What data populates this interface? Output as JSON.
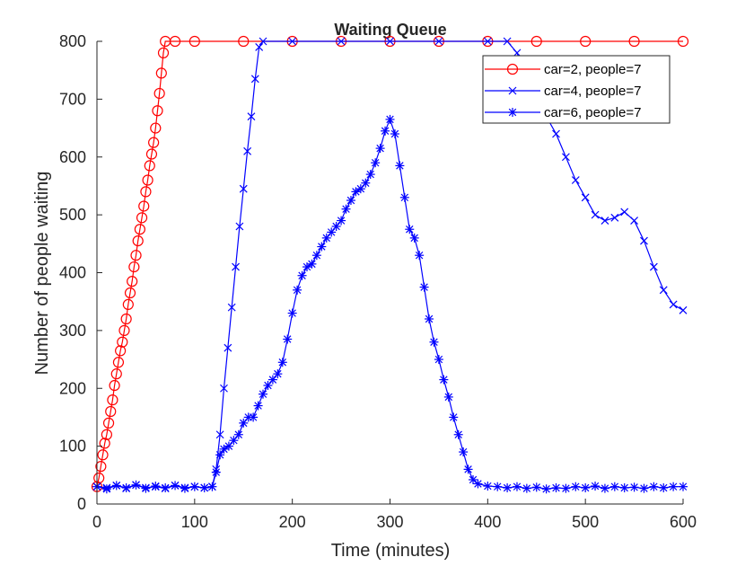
{
  "chart_data": {
    "type": "line",
    "title": "Waiting Queue",
    "xlabel": "Time (minutes)",
    "ylabel": "Number of people waiting",
    "xlim": [
      0,
      600
    ],
    "ylim": [
      0,
      800
    ],
    "xticks": [
      0,
      100,
      200,
      300,
      400,
      500,
      600
    ],
    "yticks": [
      0,
      100,
      200,
      300,
      400,
      500,
      600,
      700,
      800
    ],
    "xtick_labels": [
      "0",
      "100",
      "200",
      "300",
      "400",
      "500",
      "600"
    ],
    "ytick_labels": [
      "0",
      "100",
      "200",
      "300",
      "400",
      "500",
      "600",
      "700",
      "800"
    ],
    "grid": false,
    "legend_position": "top-right",
    "series": [
      {
        "name": "car=2, people=7",
        "color": "#ff0000",
        "marker": "circle",
        "points": [
          [
            0,
            30
          ],
          [
            2,
            45
          ],
          [
            4,
            65
          ],
          [
            6,
            85
          ],
          [
            8,
            105
          ],
          [
            10,
            120
          ],
          [
            12,
            140
          ],
          [
            14,
            160
          ],
          [
            16,
            180
          ],
          [
            18,
            205
          ],
          [
            20,
            225
          ],
          [
            22,
            245
          ],
          [
            24,
            265
          ],
          [
            26,
            280
          ],
          [
            28,
            300
          ],
          [
            30,
            320
          ],
          [
            32,
            345
          ],
          [
            34,
            365
          ],
          [
            36,
            385
          ],
          [
            38,
            410
          ],
          [
            40,
            430
          ],
          [
            42,
            455
          ],
          [
            44,
            475
          ],
          [
            46,
            495
          ],
          [
            48,
            515
          ],
          [
            50,
            540
          ],
          [
            52,
            560
          ],
          [
            54,
            585
          ],
          [
            56,
            605
          ],
          [
            58,
            625
          ],
          [
            60,
            650
          ],
          [
            62,
            680
          ],
          [
            64,
            710
          ],
          [
            66,
            745
          ],
          [
            68,
            780
          ],
          [
            70,
            800
          ],
          [
            80,
            800
          ],
          [
            100,
            800
          ],
          [
            150,
            800
          ],
          [
            200,
            800
          ],
          [
            250,
            800
          ],
          [
            300,
            800
          ],
          [
            350,
            800
          ],
          [
            400,
            800
          ],
          [
            450,
            800
          ],
          [
            500,
            800
          ],
          [
            550,
            800
          ],
          [
            600,
            800
          ]
        ]
      },
      {
        "name": "car=4, people=7",
        "color": "#0000ff",
        "marker": "x",
        "points": [
          [
            0,
            30
          ],
          [
            10,
            28
          ],
          [
            20,
            32
          ],
          [
            30,
            27
          ],
          [
            40,
            33
          ],
          [
            50,
            28
          ],
          [
            60,
            30
          ],
          [
            70,
            27
          ],
          [
            80,
            32
          ],
          [
            90,
            28
          ],
          [
            100,
            30
          ],
          [
            110,
            28
          ],
          [
            118,
            30
          ],
          [
            122,
            60
          ],
          [
            126,
            120
          ],
          [
            130,
            200
          ],
          [
            134,
            270
          ],
          [
            138,
            340
          ],
          [
            142,
            410
          ],
          [
            146,
            480
          ],
          [
            150,
            545
          ],
          [
            154,
            610
          ],
          [
            158,
            670
          ],
          [
            162,
            735
          ],
          [
            166,
            790
          ],
          [
            170,
            800
          ],
          [
            200,
            800
          ],
          [
            250,
            800
          ],
          [
            300,
            800
          ],
          [
            350,
            800
          ],
          [
            400,
            800
          ],
          [
            420,
            800
          ],
          [
            430,
            780
          ],
          [
            440,
            740
          ],
          [
            450,
            700
          ],
          [
            460,
            670
          ],
          [
            470,
            640
          ],
          [
            480,
            600
          ],
          [
            490,
            560
          ],
          [
            500,
            530
          ],
          [
            510,
            500
          ],
          [
            520,
            490
          ],
          [
            530,
            495
          ],
          [
            540,
            505
          ],
          [
            550,
            490
          ],
          [
            560,
            455
          ],
          [
            570,
            410
          ],
          [
            580,
            370
          ],
          [
            590,
            345
          ],
          [
            600,
            335
          ]
        ]
      },
      {
        "name": "car=6, people=7",
        "color": "#0000ff",
        "marker": "star",
        "points": [
          [
            0,
            30
          ],
          [
            10,
            26
          ],
          [
            20,
            32
          ],
          [
            30,
            28
          ],
          [
            40,
            33
          ],
          [
            50,
            27
          ],
          [
            60,
            31
          ],
          [
            70,
            28
          ],
          [
            80,
            32
          ],
          [
            90,
            27
          ],
          [
            100,
            30
          ],
          [
            110,
            28
          ],
          [
            118,
            30
          ],
          [
            122,
            55
          ],
          [
            126,
            85
          ],
          [
            130,
            95
          ],
          [
            135,
            100
          ],
          [
            140,
            110
          ],
          [
            145,
            120
          ],
          [
            150,
            140
          ],
          [
            155,
            150
          ],
          [
            160,
            150
          ],
          [
            165,
            170
          ],
          [
            170,
            190
          ],
          [
            175,
            205
          ],
          [
            180,
            215
          ],
          [
            185,
            225
          ],
          [
            190,
            245
          ],
          [
            195,
            285
          ],
          [
            200,
            330
          ],
          [
            205,
            370
          ],
          [
            210,
            395
          ],
          [
            215,
            410
          ],
          [
            220,
            415
          ],
          [
            225,
            430
          ],
          [
            230,
            445
          ],
          [
            235,
            460
          ],
          [
            240,
            470
          ],
          [
            245,
            480
          ],
          [
            250,
            490
          ],
          [
            255,
            510
          ],
          [
            260,
            525
          ],
          [
            265,
            540
          ],
          [
            270,
            545
          ],
          [
            275,
            555
          ],
          [
            280,
            570
          ],
          [
            285,
            590
          ],
          [
            290,
            615
          ],
          [
            295,
            645
          ],
          [
            300,
            665
          ],
          [
            305,
            640
          ],
          [
            310,
            585
          ],
          [
            315,
            530
          ],
          [
            320,
            475
          ],
          [
            325,
            460
          ],
          [
            330,
            430
          ],
          [
            335,
            375
          ],
          [
            340,
            320
          ],
          [
            345,
            280
          ],
          [
            350,
            250
          ],
          [
            355,
            215
          ],
          [
            360,
            185
          ],
          [
            365,
            150
          ],
          [
            370,
            120
          ],
          [
            375,
            90
          ],
          [
            380,
            60
          ],
          [
            385,
            42
          ],
          [
            390,
            35
          ],
          [
            400,
            31
          ],
          [
            410,
            30
          ],
          [
            420,
            28
          ],
          [
            430,
            30
          ],
          [
            440,
            27
          ],
          [
            450,
            29
          ],
          [
            460,
            26
          ],
          [
            470,
            28
          ],
          [
            480,
            27
          ],
          [
            490,
            30
          ],
          [
            500,
            28
          ],
          [
            510,
            31
          ],
          [
            520,
            27
          ],
          [
            530,
            30
          ],
          [
            540,
            28
          ],
          [
            550,
            29
          ],
          [
            560,
            27
          ],
          [
            570,
            30
          ],
          [
            580,
            28
          ],
          [
            590,
            30
          ],
          [
            600,
            30
          ]
        ]
      }
    ]
  }
}
